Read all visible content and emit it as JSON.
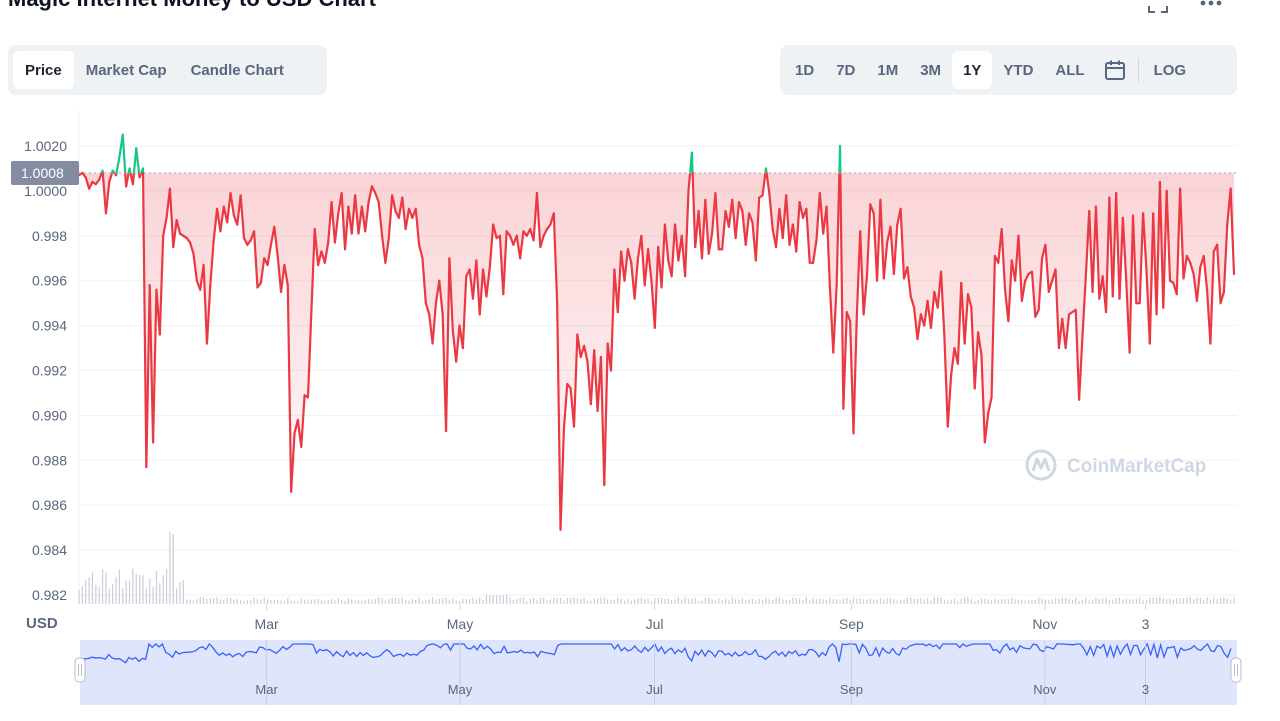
{
  "page": {
    "title": "Magic Internet Money to USD Chart",
    "expand_icon": "expand-icon",
    "more_icon": "more-icon"
  },
  "tabs": [
    {
      "label": "Price",
      "active": true
    },
    {
      "label": "Market Cap",
      "active": false
    },
    {
      "label": "Candle Chart",
      "active": false
    }
  ],
  "ranges": [
    {
      "label": "1D",
      "active": false
    },
    {
      "label": "7D",
      "active": false
    },
    {
      "label": "1M",
      "active": false
    },
    {
      "label": "3M",
      "active": false
    },
    {
      "label": "1Y",
      "active": true
    },
    {
      "label": "YTD",
      "active": false
    },
    {
      "label": "ALL",
      "active": false
    }
  ],
  "calendar_icon": "calendar-icon",
  "log_label": "LOG",
  "watermark": "CoinMarketCap",
  "colors": {
    "up": "#16c784",
    "down": "#ea3943",
    "fill_down": "#ea3943",
    "navigator_line": "#3861fb",
    "navigator_fill": "#dfe5fb",
    "grid": "#eff2f5",
    "axis_text": "#58667e"
  },
  "chart_data": {
    "type": "line",
    "title": "",
    "xlabel": "",
    "ylabel": "USD",
    "ylim": [
      0.9815,
      1.003
    ],
    "yticks": [
      0.982,
      0.984,
      0.986,
      0.988,
      0.99,
      0.992,
      0.994,
      0.996,
      0.998,
      1.0,
      1.002
    ],
    "ytick_labels": [
      "0.982",
      "0.984",
      "0.986",
      "0.988",
      "0.990",
      "0.992",
      "0.994",
      "0.996",
      "0.998",
      "1.0000",
      "1.0020"
    ],
    "reference_value": 1.0008,
    "reference_label": "1.0008",
    "x_tick_labels": [
      "Mar",
      "May",
      "Jul",
      "Sep",
      "Nov",
      "3"
    ],
    "x_tick_positions": [
      0.162,
      0.329,
      0.497,
      0.667,
      0.834,
      0.921
    ],
    "navigator_labels": [
      "Mar",
      "May",
      "Jul",
      "Sep",
      "Nov",
      "3"
    ],
    "series": [
      {
        "values": [
          1.0007,
          1.0008,
          1.0006,
          1.0001,
          1.0004,
          1.0003,
          1.0005,
          1.0009,
          0.999,
          1.0004,
          1.0009,
          1.0007,
          1.0015,
          1.0025,
          1.0002,
          1.001,
          1.0003,
          1.0019,
          1.0006,
          1.001,
          0.9877,
          0.9958,
          0.9888,
          0.9956,
          0.9936,
          0.998,
          0.9988,
          1.0001,
          0.9975,
          0.9987,
          0.9981,
          0.998,
          0.9979,
          0.9977,
          0.9972,
          0.996,
          0.9956,
          0.9967,
          0.9932,
          0.9958,
          0.9978,
          0.9992,
          0.9982,
          0.9993,
          0.9986,
          0.9999,
          0.9989,
          0.9985,
          0.9998,
          0.9979,
          0.9976,
          0.9978,
          0.9982,
          0.9957,
          0.9959,
          0.997,
          0.9967,
          0.9976,
          0.9984,
          0.9971,
          0.9955,
          0.9967,
          0.9958,
          0.9866,
          0.9892,
          0.9898,
          0.9886,
          0.9909,
          0.9908,
          0.9946,
          0.9983,
          0.9967,
          0.9973,
          0.9968,
          0.9977,
          0.9995,
          0.9977,
          0.999,
          0.9999,
          0.9974,
          0.9993,
          0.9981,
          0.9998,
          0.9981,
          0.9993,
          0.9982,
          0.9995,
          1.0002,
          0.9999,
          0.9995,
          0.998,
          0.9968,
          0.9979,
          0.9998,
          0.9991,
          0.9988,
          0.9997,
          0.9983,
          0.9992,
          0.9988,
          0.9992,
          0.9976,
          0.997,
          0.995,
          0.9945,
          0.9932,
          0.995,
          0.996,
          0.9945,
          0.9893,
          0.997,
          0.9938,
          0.9924,
          0.994,
          0.993,
          0.9962,
          0.9965,
          0.9952,
          0.9969,
          0.9945,
          0.9965,
          0.9953,
          0.9966,
          0.9985,
          0.9979,
          0.998,
          0.9954,
          0.9982,
          0.998,
          0.9976,
          0.998,
          0.997,
          0.9982,
          0.998,
          0.9983,
          0.9978,
          0.9999,
          0.9975,
          0.998,
          0.9983,
          0.9985,
          0.999,
          0.995,
          0.9849,
          0.9894,
          0.9914,
          0.9912,
          0.9895,
          0.9936,
          0.9926,
          0.9931,
          0.9924,
          0.9905,
          0.9929,
          0.9902,
          0.9926,
          0.9869,
          0.9932,
          0.992,
          0.9965,
          0.9946,
          0.9973,
          0.996,
          0.9974,
          0.9968,
          0.9952,
          0.997,
          0.998,
          0.9958,
          0.9974,
          0.996,
          0.9939,
          0.9975,
          0.9957,
          0.9985,
          0.9969,
          0.9962,
          0.9985,
          0.9969,
          0.998,
          0.9962,
          1.0,
          1.0017,
          0.9975,
          0.9991,
          0.997,
          0.9996,
          0.9972,
          0.9981,
          0.9999,
          0.9974,
          0.9974,
          0.9991,
          0.9984,
          0.9996,
          0.9979,
          0.9995,
          0.9991,
          0.9976,
          0.999,
          0.9986,
          0.9969,
          0.9997,
          0.9998,
          1.001,
          0.9999,
          0.9983,
          0.9975,
          0.9992,
          0.9979,
          0.9998,
          0.9976,
          0.9985,
          0.9973,
          0.9995,
          0.9988,
          0.9992,
          0.9968,
          0.9968,
          0.9978,
          0.9999,
          0.9981,
          0.9993,
          0.9957,
          0.9928,
          0.9958,
          1.002,
          0.9903,
          0.9946,
          0.9942,
          0.9892,
          0.9945,
          0.9982,
          0.9945,
          0.9962,
          0.9994,
          0.999,
          0.996,
          0.9996,
          0.9961,
          0.9977,
          0.9984,
          0.9963,
          0.9985,
          0.9992,
          0.9961,
          0.9966,
          0.9953,
          0.9948,
          0.9934,
          0.9945,
          0.994,
          0.9951,
          0.9939,
          0.9955,
          0.9948,
          0.9964,
          0.9935,
          0.9895,
          0.9918,
          0.993,
          0.9923,
          0.9959,
          0.9932,
          0.9954,
          0.9948,
          0.9912,
          0.9937,
          0.9927,
          0.9888,
          0.9901,
          0.9908,
          0.9971,
          0.9968,
          0.9983,
          0.9956,
          0.9942,
          0.9969,
          0.996,
          0.998,
          0.9951,
          0.996,
          0.9963,
          0.9964,
          0.9944,
          0.9947,
          0.997,
          0.9976,
          0.9955,
          0.996,
          0.9965,
          0.993,
          0.9943,
          0.993,
          0.9945,
          0.9946,
          0.9947,
          0.9907,
          0.9935,
          0.9962,
          0.9991,
          0.9955,
          0.9993,
          0.9952,
          0.9962,
          0.9946,
          0.9997,
          0.9953,
          0.9999,
          0.9952,
          0.9988,
          0.996,
          0.9928,
          0.9989,
          0.995,
          0.995,
          0.999,
          0.9965,
          0.9932,
          0.999,
          0.9945,
          1.0004,
          0.9948,
          1.0,
          0.996,
          0.9959,
          0.9954,
          1.0001,
          0.9961,
          0.9971,
          0.9968,
          0.9963,
          0.9951,
          0.9966,
          0.9971,
          0.9956,
          0.9932,
          0.9973,
          0.9976,
          0.995,
          0.9955,
          0.9985,
          1.0001,
          0.9963
        ]
      }
    ],
    "volume_bars": "present, unlabeled",
    "grid": true,
    "legend": "none"
  }
}
